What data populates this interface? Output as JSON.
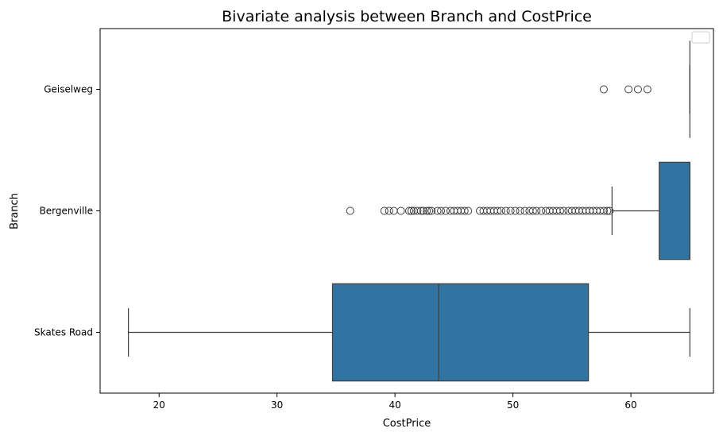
{
  "chart_data": {
    "type": "box",
    "orientation": "horizontal",
    "title": "Bivariate analysis between Branch and CostPrice",
    "xlabel": "CostPrice",
    "ylabel": "Branch",
    "xlim": [
      15.0,
      67.0
    ],
    "xticks": [
      20,
      30,
      40,
      50,
      60
    ],
    "grid": false,
    "legend": {
      "entries": [],
      "position": "top-right"
    },
    "color": "#3274a1",
    "edge_color": "#3f3f3f",
    "categories": [
      "Geiselweg",
      "Bergenville",
      "Skates Road"
    ],
    "series": [
      {
        "category": "Geiselweg",
        "whisker_low": 65.0,
        "q1": 65.0,
        "median": 65.0,
        "q3": 65.0,
        "whisker_high": 65.0,
        "outliers": [
          57.7,
          59.8,
          60.6,
          61.4
        ]
      },
      {
        "category": "Bergenville",
        "whisker_low": 58.4,
        "q1": 62.4,
        "median": 65.0,
        "q3": 65.0,
        "whisker_high": 65.0,
        "outliers": [
          36.2,
          39.1,
          39.5,
          39.9,
          40.5,
          41.2,
          41.4,
          41.6,
          41.9,
          42.2,
          42.4,
          42.7,
          42.9,
          43.1,
          43.6,
          43.9,
          44.3,
          44.7,
          45.0,
          45.3,
          45.6,
          45.9,
          46.2,
          47.2,
          47.5,
          47.8,
          48.1,
          48.4,
          48.7,
          49.0,
          49.4,
          49.8,
          50.2,
          50.6,
          51.0,
          51.4,
          51.7,
          52.0,
          52.4,
          52.8,
          53.1,
          53.4,
          53.7,
          54.0,
          54.3,
          54.7,
          55.0,
          55.3,
          55.6,
          55.9,
          56.2,
          56.5,
          56.8,
          57.1,
          57.4,
          57.7,
          58.0,
          58.2
        ]
      },
      {
        "category": "Skates Road",
        "whisker_low": 17.4,
        "q1": 34.7,
        "median": 43.7,
        "q3": 56.4,
        "whisker_high": 65.0,
        "outliers": []
      }
    ]
  }
}
